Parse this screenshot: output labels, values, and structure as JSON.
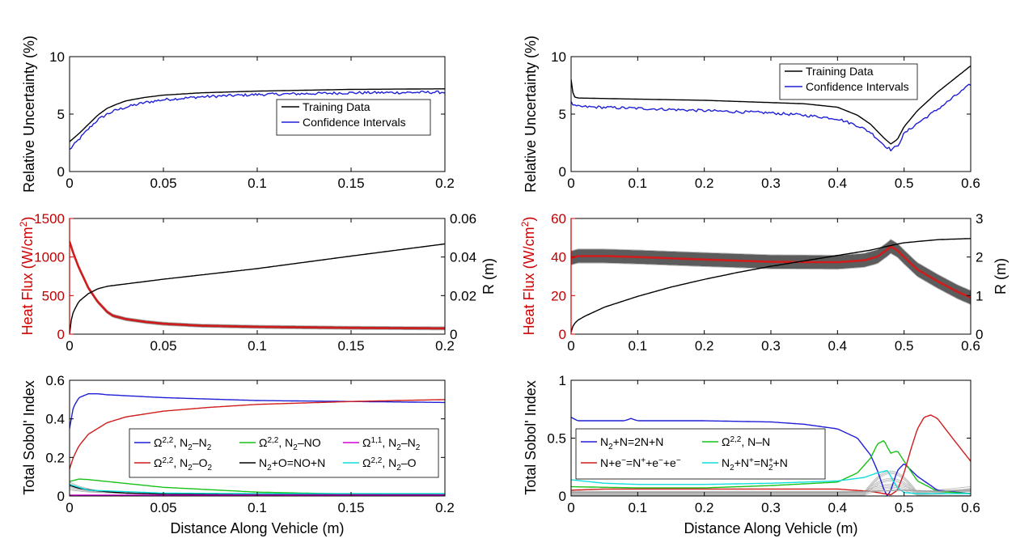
{
  "xlabel": "Distance Along Vehicle (m)",
  "chart_data": [
    {
      "id": "left_uncertainty",
      "type": "line",
      "ylabel": "Relative Uncertainty (%)",
      "xlim": [
        0,
        0.2
      ],
      "ylim": [
        0,
        10
      ],
      "xticks": [
        "0",
        "0.05",
        "0.1",
        "0.15",
        "0.2"
      ],
      "xtick_values": [
        0,
        0.05,
        0.1,
        0.15,
        0.2
      ],
      "yticks": [
        "0",
        "5",
        "10"
      ],
      "ytick_values": [
        0,
        5,
        10
      ],
      "series": [
        {
          "name": "Training Data",
          "color": "#000000",
          "x": [
            0,
            0.005,
            0.01,
            0.015,
            0.02,
            0.025,
            0.03,
            0.04,
            0.05,
            0.07,
            0.1,
            0.15,
            0.2
          ],
          "y": [
            2.6,
            3.3,
            4.1,
            4.9,
            5.5,
            5.85,
            6.15,
            6.45,
            6.65,
            6.85,
            7.0,
            7.15,
            7.2
          ]
        },
        {
          "name": "Confidence Intervals",
          "color": "#1f1fd6",
          "noise": 0.12,
          "x": [
            0,
            0.005,
            0.01,
            0.015,
            0.02,
            0.025,
            0.03,
            0.04,
            0.05,
            0.07,
            0.1,
            0.15,
            0.2
          ],
          "y": [
            1.9,
            2.8,
            3.7,
            4.5,
            5.0,
            5.35,
            5.6,
            6.0,
            6.25,
            6.5,
            6.7,
            6.85,
            6.9
          ]
        }
      ]
    },
    {
      "id": "right_uncertainty",
      "type": "line",
      "ylabel": "Relative Uncertainty (%)",
      "xlim": [
        0,
        0.6
      ],
      "ylim": [
        0,
        10
      ],
      "xticks": [
        "0",
        "0.1",
        "0.2",
        "0.3",
        "0.4",
        "0.5",
        "0.6"
      ],
      "xtick_values": [
        0,
        0.1,
        0.2,
        0.3,
        0.4,
        0.5,
        0.6
      ],
      "yticks": [
        "0",
        "5",
        "10"
      ],
      "ytick_values": [
        0,
        5,
        10
      ],
      "series": [
        {
          "name": "Training Data",
          "color": "#000000",
          "x": [
            0,
            0.002,
            0.005,
            0.01,
            0.1,
            0.2,
            0.3,
            0.35,
            0.4,
            0.43,
            0.45,
            0.47,
            0.48,
            0.49,
            0.5,
            0.52,
            0.55,
            0.6
          ],
          "y": [
            8.0,
            7.0,
            6.5,
            6.4,
            6.3,
            6.2,
            6.0,
            5.9,
            5.6,
            4.9,
            4.1,
            2.9,
            2.4,
            2.8,
            3.9,
            5.3,
            6.9,
            9.2
          ]
        },
        {
          "name": "Confidence Intervals",
          "color": "#1f1fd6",
          "noise": 0.12,
          "x": [
            0,
            0.005,
            0.01,
            0.1,
            0.2,
            0.3,
            0.35,
            0.4,
            0.43,
            0.45,
            0.47,
            0.48,
            0.49,
            0.5,
            0.52,
            0.55,
            0.6
          ],
          "y": [
            6.0,
            5.7,
            5.65,
            5.5,
            5.3,
            5.1,
            4.9,
            4.6,
            4.0,
            3.4,
            2.3,
            1.9,
            2.2,
            3.3,
            4.2,
            5.4,
            7.6
          ]
        }
      ]
    },
    {
      "id": "left_heatflux",
      "type": "line",
      "ylabel": "Heat Flux (W/cm2)",
      "ylabel_right": "R (m)",
      "xlim": [
        0,
        0.2
      ],
      "ylim": [
        0,
        1500
      ],
      "ylim_right": [
        0,
        0.06
      ],
      "xticks": [
        "0",
        "0.05",
        "0.1",
        "0.15",
        "0.2"
      ],
      "xtick_values": [
        0,
        0.05,
        0.1,
        0.15,
        0.2
      ],
      "yticks": [
        "0",
        "500",
        "1000",
        "1500"
      ],
      "ytick_values": [
        0,
        500,
        1000,
        1500
      ],
      "yticks_right": [
        "0",
        "0.02",
        "0.04",
        "0.06"
      ],
      "ytick_values_right": [
        0,
        0.02,
        0.04,
        0.06
      ],
      "series": [
        {
          "name": "Heat Flux",
          "axis": "left",
          "color": "#d01c1c",
          "band": 20,
          "bandColor": "#5a5a5a",
          "x": [
            0,
            0.002,
            0.005,
            0.01,
            0.015,
            0.02,
            0.023,
            0.03,
            0.04,
            0.05,
            0.07,
            0.1,
            0.15,
            0.2
          ],
          "y": [
            1200,
            1050,
            860,
            600,
            420,
            290,
            240,
            195,
            160,
            135,
            110,
            95,
            82,
            75
          ]
        },
        {
          "name": "R",
          "axis": "right",
          "color": "#000000",
          "x": [
            0,
            0.001,
            0.002,
            0.005,
            0.01,
            0.015,
            0.02,
            0.023,
            0.05,
            0.1,
            0.15,
            0.2
          ],
          "y": [
            0,
            0.008,
            0.0115,
            0.017,
            0.021,
            0.0235,
            0.0248,
            0.0252,
            0.0285,
            0.034,
            0.0405,
            0.0468
          ]
        }
      ]
    },
    {
      "id": "right_heatflux",
      "type": "line",
      "ylabel": "Heat Flux (W/cm2)",
      "ylabel_right": "R (m)",
      "xlim": [
        0,
        0.6
      ],
      "ylim": [
        0,
        60
      ],
      "ylim_right": [
        0,
        3
      ],
      "xticks": [
        "0",
        "0.1",
        "0.2",
        "0.3",
        "0.4",
        "0.5",
        "0.6"
      ],
      "xtick_values": [
        0,
        0.1,
        0.2,
        0.3,
        0.4,
        0.5,
        0.6
      ],
      "yticks": [
        "0",
        "20",
        "40",
        "60"
      ],
      "ytick_values": [
        0,
        20,
        40,
        60
      ],
      "yticks_right": [
        "0",
        "1",
        "2",
        "3"
      ],
      "ytick_values_right": [
        0,
        1,
        2,
        3
      ],
      "series": [
        {
          "name": "Heat Flux",
          "axis": "left",
          "color": "#d01c1c",
          "band": 3.5,
          "bandColor": "#4a4a4a",
          "x": [
            0,
            0.01,
            0.05,
            0.1,
            0.2,
            0.3,
            0.4,
            0.44,
            0.46,
            0.475,
            0.48,
            0.49,
            0.5,
            0.52,
            0.55,
            0.58,
            0.6
          ],
          "y": [
            39.5,
            40.5,
            40.5,
            40.0,
            38.7,
            37.5,
            37.3,
            38.3,
            40.2,
            44.0,
            45.5,
            43.5,
            40.0,
            33.5,
            27.5,
            22.0,
            19.0
          ]
        },
        {
          "name": "R",
          "axis": "right",
          "color": "#000000",
          "x": [
            0,
            0.002,
            0.005,
            0.01,
            0.02,
            0.05,
            0.1,
            0.15,
            0.2,
            0.25,
            0.3,
            0.35,
            0.4,
            0.45,
            0.48,
            0.5,
            0.55,
            0.6
          ],
          "y": [
            0.05,
            0.18,
            0.27,
            0.36,
            0.46,
            0.7,
            0.98,
            1.22,
            1.42,
            1.6,
            1.76,
            1.9,
            2.04,
            2.18,
            2.3,
            2.37,
            2.45,
            2.48
          ]
        }
      ]
    },
    {
      "id": "left_sobol",
      "type": "line",
      "ylabel": "Total Sobol' Index",
      "xlim": [
        0,
        0.2
      ],
      "ylim": [
        0,
        0.6
      ],
      "xticks": [
        "0",
        "0.05",
        "0.1",
        "0.15",
        "0.2"
      ],
      "xtick_values": [
        0,
        0.05,
        0.1,
        0.15,
        0.2
      ],
      "yticks": [
        "0",
        "0.2",
        "0.4",
        "0.6"
      ],
      "ytick_values": [
        0,
        0.2,
        0.4,
        0.6
      ],
      "series": [
        {
          "name": "Ω2,2, N2–N2",
          "color": "#1f1fd6",
          "x": [
            0,
            0.002,
            0.005,
            0.01,
            0.015,
            0.02,
            0.05,
            0.1,
            0.15,
            0.2
          ],
          "y": [
            0.35,
            0.46,
            0.51,
            0.53,
            0.53,
            0.525,
            0.51,
            0.495,
            0.49,
            0.485
          ]
        },
        {
          "name": "Ω2,2, N2–O2",
          "color": "#d01c1c",
          "x": [
            0,
            0.002,
            0.005,
            0.01,
            0.02,
            0.03,
            0.05,
            0.075,
            0.1,
            0.15,
            0.2
          ],
          "y": [
            0.14,
            0.2,
            0.26,
            0.32,
            0.38,
            0.41,
            0.44,
            0.46,
            0.475,
            0.49,
            0.5
          ]
        },
        {
          "name": "Ω2,2, N2–NO",
          "color": "#19c119",
          "x": [
            0,
            0.005,
            0.01,
            0.03,
            0.05,
            0.1,
            0.15,
            0.2
          ],
          "y": [
            0.075,
            0.088,
            0.085,
            0.065,
            0.045,
            0.02,
            0.01,
            0.007
          ]
        },
        {
          "name": "N2+O=NO+N",
          "color": "#000000",
          "x": [
            0,
            0.005,
            0.01,
            0.02,
            0.03,
            0.05,
            0.1,
            0.2
          ],
          "y": [
            0.055,
            0.04,
            0.032,
            0.022,
            0.015,
            0.01,
            0.008,
            0.007
          ]
        },
        {
          "name": "Ω1,1, N2–N2",
          "color": "#d400d4",
          "x": [
            0,
            0.05,
            0.1,
            0.2
          ],
          "y": [
            0.004,
            0.004,
            0.004,
            0.004
          ]
        },
        {
          "name": "Ω2,2, N2–O",
          "color": "#10dede",
          "x": [
            0,
            0.01,
            0.05,
            0.1,
            0.2
          ],
          "y": [
            0.06,
            0.03,
            0.015,
            0.012,
            0.012
          ]
        }
      ],
      "legend": {
        "position": "bottom-right",
        "columns": 3,
        "order": [
          0,
          2,
          4,
          1,
          3,
          5
        ],
        "entries": [
          {
            "color": "#1f1fd6",
            "pre": "Ω",
            "sup": "2,2",
            "text": ", N",
            "sub": "2",
            "post": "–N",
            "sub2": "2",
            "end": ""
          },
          {
            "color": "#19c119",
            "pre": "Ω",
            "sup": "2,2",
            "text": ", N",
            "sub": "2",
            "post": "–NO",
            "sub2": "",
            "end": ""
          },
          {
            "color": "#d400d4",
            "pre": "Ω",
            "sup": "1,1",
            "text": ", N",
            "sub": "2",
            "post": "–N",
            "sub2": "2",
            "end": ""
          },
          {
            "color": "#d01c1c",
            "pre": "Ω",
            "sup": "2,2",
            "text": ", N",
            "sub": "2",
            "post": "–O",
            "sub2": "2",
            "end": ""
          },
          {
            "color": "#000000",
            "pre": "N",
            "sup": "",
            "text": "",
            "sub": "2",
            "post": "+O=NO+N",
            "sub2": "",
            "end": ""
          },
          {
            "color": "#10dede",
            "pre": "Ω",
            "sup": "2,2",
            "text": ", N",
            "sub": "2",
            "post": "–O",
            "sub2": "",
            "end": ""
          }
        ]
      }
    },
    {
      "id": "right_sobol",
      "type": "line",
      "ylabel": "Total Sobol' Index",
      "xlim": [
        0,
        0.6
      ],
      "ylim": [
        0,
        1
      ],
      "xticks": [
        "0",
        "0.1",
        "0.2",
        "0.3",
        "0.4",
        "0.5",
        "0.6"
      ],
      "xtick_values": [
        0,
        0.1,
        0.2,
        0.3,
        0.4,
        0.5,
        0.6
      ],
      "yticks": [
        "0",
        "0.5",
        "1"
      ],
      "ytick_values": [
        0,
        0.5,
        1
      ],
      "series": [
        {
          "name": "N2+N=2N+N",
          "color": "#1f1fd6",
          "x": [
            0,
            0.01,
            0.08,
            0.09,
            0.1,
            0.2,
            0.3,
            0.35,
            0.4,
            0.43,
            0.45,
            0.46,
            0.47,
            0.475,
            0.48,
            0.49,
            0.5,
            0.52,
            0.55,
            0.6
          ],
          "y": [
            0.68,
            0.65,
            0.65,
            0.67,
            0.65,
            0.65,
            0.64,
            0.62,
            0.58,
            0.5,
            0.35,
            0.22,
            0.05,
            0.0,
            0.05,
            0.22,
            0.28,
            0.17,
            0.05,
            0.02
          ]
        },
        {
          "name": "Ω2,2, N–N",
          "color": "#19c119",
          "x": [
            0,
            0.1,
            0.2,
            0.3,
            0.4,
            0.43,
            0.45,
            0.46,
            0.47,
            0.475,
            0.48,
            0.49,
            0.5,
            0.52,
            0.55,
            0.6
          ],
          "y": [
            0.08,
            0.07,
            0.07,
            0.09,
            0.12,
            0.2,
            0.33,
            0.45,
            0.48,
            0.42,
            0.37,
            0.39,
            0.3,
            0.13,
            0.04,
            0.02
          ]
        },
        {
          "name": "N+e-=N++e-+e-",
          "color": "#d01c1c",
          "x": [
            0,
            0.05,
            0.1,
            0.2,
            0.3,
            0.4,
            0.45,
            0.47,
            0.48,
            0.49,
            0.5,
            0.51,
            0.52,
            0.53,
            0.54,
            0.55,
            0.57,
            0.6
          ],
          "y": [
            0.05,
            0.06,
            0.06,
            0.06,
            0.06,
            0.06,
            0.04,
            0.02,
            0.01,
            0.05,
            0.2,
            0.4,
            0.58,
            0.68,
            0.7,
            0.67,
            0.52,
            0.3
          ]
        },
        {
          "name": "N2+N+=N2++N",
          "color": "#10dede",
          "x": [
            0,
            0.05,
            0.1,
            0.2,
            0.3,
            0.4,
            0.44,
            0.46,
            0.475,
            0.48,
            0.49,
            0.5,
            0.52,
            0.6
          ],
          "y": [
            0.14,
            0.11,
            0.1,
            0.1,
            0.11,
            0.13,
            0.16,
            0.2,
            0.22,
            0.17,
            0.07,
            0.03,
            0.02,
            0.02
          ]
        },
        {
          "name": "others",
          "color": "#a0a0a0",
          "x": [
            0,
            0.1,
            0.2,
            0.3,
            0.4,
            0.45,
            0.5,
            0.55,
            0.6
          ],
          "y": [
            0.03,
            0.03,
            0.03,
            0.03,
            0.03,
            0.04,
            0.05,
            0.04,
            0.05
          ]
        }
      ],
      "legend": {
        "position": "center-left",
        "columns": 2,
        "order": [
          0,
          1,
          2,
          3
        ],
        "entries": [
          {
            "color": "#1f1fd6",
            "pre": "N",
            "sup": "",
            "text": "",
            "sub": "2",
            "post": "+N=2N+N",
            "sub2": "",
            "end": ""
          },
          {
            "color": "#19c119",
            "pre": "Ω",
            "sup": "2,2",
            "text": ", N–N",
            "sub": "",
            "post": "",
            "sub2": "",
            "end": ""
          },
          {
            "color": "#d01c1c",
            "pre": "N+e",
            "sup": "−",
            "text": "=N",
            "sub": "",
            "post": "",
            "sub2": "",
            "end": "",
            "raw": [
              [
                "N+e",
                ""
              ],
              [
                "−",
                "sup"
              ],
              [
                "=N",
                ""
              ],
              [
                "+",
                "sup"
              ],
              [
                "+e",
                ""
              ],
              [
                "−",
                "sup"
              ],
              [
                "+e",
                ""
              ],
              [
                "−",
                "sup"
              ]
            ]
          },
          {
            "color": "#10dede",
            "pre": "N",
            "sup": "",
            "text": "",
            "sub": "2",
            "post": "",
            "sub2": "",
            "end": "",
            "raw": [
              [
                "N",
                ""
              ],
              [
                "2",
                "sub"
              ],
              [
                "+N",
                ""
              ],
              [
                "+",
                "sup"
              ],
              [
                "=N",
                ""
              ],
              [
                "+",
                "sup"
              ],
              [
                "2",
                "subx"
              ],
              [
                "+N",
                ""
              ]
            ]
          }
        ]
      }
    }
  ]
}
